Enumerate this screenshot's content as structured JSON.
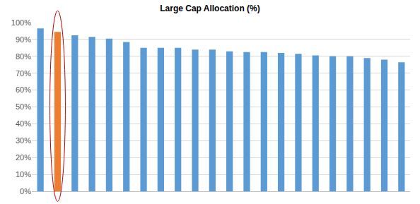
{
  "chart_data": {
    "type": "bar",
    "title": "Large Cap Allocation (%)",
    "categories": [
      null,
      null,
      null,
      null,
      null,
      null,
      null,
      null,
      null,
      null,
      null,
      null,
      null,
      null,
      null,
      null,
      null,
      null,
      null,
      null,
      null,
      null
    ],
    "values": [
      96.5,
      94.5,
      92.5,
      91.5,
      90.5,
      88.5,
      85,
      85,
      85,
      84,
      84,
      83,
      82.5,
      82.5,
      82,
      81.5,
      80.5,
      80,
      80,
      79,
      78,
      76.5
    ],
    "colors": [
      "#5b9bd5",
      "#ed7d31",
      "#5b9bd5",
      "#5b9bd5",
      "#5b9bd5",
      "#5b9bd5",
      "#5b9bd5",
      "#5b9bd5",
      "#5b9bd5",
      "#5b9bd5",
      "#5b9bd5",
      "#5b9bd5",
      "#5b9bd5",
      "#5b9bd5",
      "#5b9bd5",
      "#5b9bd5",
      "#5b9bd5",
      "#5b9bd5",
      "#5b9bd5",
      "#5b9bd5",
      "#5b9bd5",
      "#5b9bd5"
    ],
    "ylim": [
      0,
      100
    ],
    "yticks": [
      {
        "value": 0,
        "label": "0%"
      },
      {
        "value": 10,
        "label": "10%"
      },
      {
        "value": 20,
        "label": "20%"
      },
      {
        "value": 30,
        "label": "30%"
      },
      {
        "value": 40,
        "label": "40%"
      },
      {
        "value": 50,
        "label": "50%"
      },
      {
        "value": 60,
        "label": "60%"
      },
      {
        "value": 70,
        "label": "70%"
      },
      {
        "value": 80,
        "label": "80%"
      },
      {
        "value": 90,
        "label": "90%"
      },
      {
        "value": 100,
        "label": "100%"
      }
    ],
    "grid": true,
    "tick_labels": "y"
  }
}
